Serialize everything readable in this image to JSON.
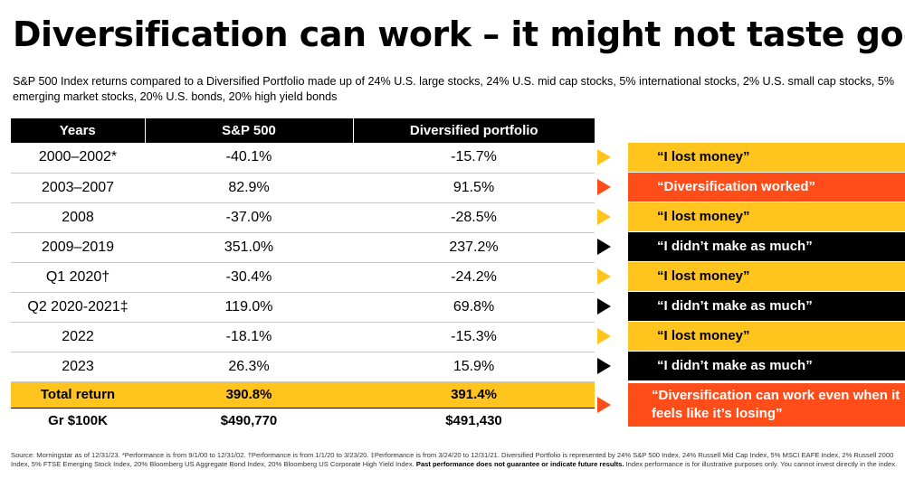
{
  "title": "Diversification can work – it might not taste good",
  "subtitle": "S&P 500 Index returns compared to a Diversified Portfolio made up of 24% U.S. large stocks, 24% U.S. mid cap stocks, 5% international stocks, 2% U.S. small cap stocks, 5% emerging market stocks, 20% U.S. bonds, 20% high yield bonds",
  "table": {
    "headers": [
      "Years",
      "S&P 500",
      "Diversified portfolio"
    ],
    "rows": [
      {
        "year": "2000–2002*",
        "sp": "-40.1%",
        "div": "-15.7%"
      },
      {
        "year": "2003–2007",
        "sp": "82.9%",
        "div": "91.5%"
      },
      {
        "year": "2008",
        "sp": "-37.0%",
        "div": "-28.5%"
      },
      {
        "year": "2009–2019",
        "sp": "351.0%",
        "div": "237.2%"
      },
      {
        "year": "Q1 2020†",
        "sp": "-30.4%",
        "div": "-24.2%"
      },
      {
        "year": "Q2 2020-2021‡",
        "sp": "119.0%",
        "div": "69.8%"
      },
      {
        "year": "2022",
        "sp": "-18.1%",
        "div": "-15.3%"
      },
      {
        "year": "2023",
        "sp": "26.3%",
        "div": "15.9%"
      }
    ],
    "total": {
      "label": "Total return",
      "sp": "390.8%",
      "div": "391.4%"
    },
    "growth": {
      "label": "Gr $100K",
      "sp": "$490,770",
      "div": "$491,430"
    }
  },
  "callouts": [
    {
      "text": "“I lost money”",
      "color": "yellow"
    },
    {
      "text": "“Diversification worked”",
      "color": "orange"
    },
    {
      "text": "“I lost money”",
      "color": "yellow"
    },
    {
      "text": "“I didn’t make as much”",
      "color": "black"
    },
    {
      "text": "“I lost money”",
      "color": "yellow"
    },
    {
      "text": "“I didn’t make as much”",
      "color": "black"
    },
    {
      "text": "“I lost money”",
      "color": "yellow"
    },
    {
      "text": "“I didn’t make as much”",
      "color": "black"
    },
    {
      "text": "“Diversification can work even when it feels like it’s losing”",
      "color": "orange"
    }
  ],
  "source": {
    "text1": "Source: Morningstar as of 12/31/23. *Performance is from 9/1/00 to 12/31/02. †Performance is from 1/1/20 to 3/23/20. ‡Performance is from 3/24/20 to 12/31/21. Diversified Portfolio is represented by 24% S&P 500 Index, 24% Russell Mid Cap Index, 5% MSCI EAFE Index, 2% Russell 2000 Index, 5% FTSE Emerging Stock Index, 20% Bloomberg US Aggregate Bond Index, 20% Bloomberg US Corporate High Yield Index.",
    "bold": "Past performance does not guarantee or indicate future results.",
    "text2": "Index performance is for illustrative purposes only. You cannot invest directly in the index."
  },
  "colors": {
    "yellow": "#ffc41d",
    "orange": "#ff4d1a",
    "black": "#000000"
  }
}
